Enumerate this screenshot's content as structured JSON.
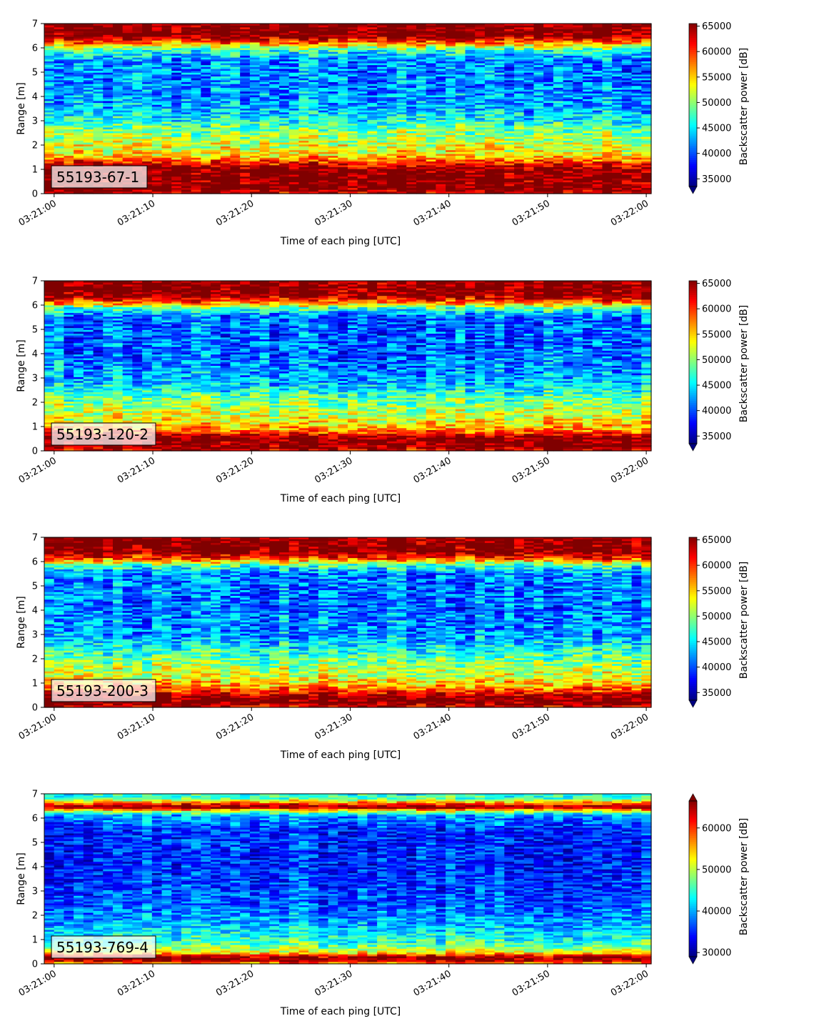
{
  "chart_data": [
    {
      "type": "heatmap",
      "panel_label": "55193-67-1",
      "xlabel": "Time of each ping [UTC]",
      "ylabel": "Range [m]",
      "x_tick_labels": [
        "03:21:00",
        "03:21:10",
        "03:21:20",
        "03:21:30",
        "03:21:40",
        "03:21:50",
        "03:22:00"
      ],
      "x_range_seconds": [
        -1,
        60.5
      ],
      "y_ticks": [
        0,
        1,
        2,
        3,
        4,
        5,
        6,
        7
      ],
      "ylim": [
        0,
        7
      ],
      "colorbar": {
        "label": "Backscatter power [dB]",
        "ticks": [
          35000,
          40000,
          45000,
          50000,
          55000,
          60000,
          65000
        ],
        "range": [
          33500,
          65500
        ],
        "extend": "min",
        "colormap": "jet"
      },
      "range_profile": [
        {
          "range": 0.0,
          "value": 62000
        },
        {
          "range": 0.2,
          "value": 66000
        },
        {
          "range": 1.0,
          "value": 66000
        },
        {
          "range": 1.3,
          "value": 60000
        },
        {
          "range": 1.6,
          "value": 54000
        },
        {
          "range": 2.0,
          "value": 52000
        },
        {
          "range": 2.5,
          "value": 50000
        },
        {
          "range": 3.0,
          "value": 46000
        },
        {
          "range": 3.5,
          "value": 43000
        },
        {
          "range": 4.5,
          "value": 41500
        },
        {
          "range": 5.5,
          "value": 42000
        },
        {
          "range": 5.9,
          "value": 47000
        },
        {
          "range": 6.2,
          "value": 58000
        },
        {
          "range": 6.5,
          "value": 66000
        },
        {
          "range": 7.0,
          "value": 66000
        }
      ]
    },
    {
      "type": "heatmap",
      "panel_label": "55193-120-2",
      "xlabel": "Time of each ping [UTC]",
      "ylabel": "Range [m]",
      "x_tick_labels": [
        "03:21:00",
        "03:21:10",
        "03:21:20",
        "03:21:30",
        "03:21:40",
        "03:21:50",
        "03:22:00"
      ],
      "x_range_seconds": [
        -1,
        60.5
      ],
      "y_ticks": [
        0,
        1,
        2,
        3,
        4,
        5,
        6,
        7
      ],
      "ylim": [
        0,
        7
      ],
      "colorbar": {
        "label": "Backscatter power [dB]",
        "ticks": [
          35000,
          40000,
          45000,
          50000,
          55000,
          60000,
          65000
        ],
        "range": [
          33500,
          65500
        ],
        "extend": "min",
        "colormap": "jet"
      },
      "range_profile": [
        {
          "range": 0.0,
          "value": 62000
        },
        {
          "range": 0.15,
          "value": 66000
        },
        {
          "range": 0.55,
          "value": 66000
        },
        {
          "range": 0.8,
          "value": 58000
        },
        {
          "range": 1.2,
          "value": 54000
        },
        {
          "range": 2.0,
          "value": 50000
        },
        {
          "range": 2.5,
          "value": 46000
        },
        {
          "range": 3.0,
          "value": 43000
        },
        {
          "range": 4.0,
          "value": 41000
        },
        {
          "range": 5.5,
          "value": 41000
        },
        {
          "range": 5.85,
          "value": 47000
        },
        {
          "range": 6.1,
          "value": 58000
        },
        {
          "range": 6.4,
          "value": 66000
        },
        {
          "range": 7.0,
          "value": 66000
        }
      ]
    },
    {
      "type": "heatmap",
      "panel_label": "55193-200-3",
      "xlabel": "Time of each ping [UTC]",
      "ylabel": "Range [m]",
      "x_tick_labels": [
        "03:21:00",
        "03:21:10",
        "03:21:20",
        "03:21:30",
        "03:21:40",
        "03:21:50",
        "03:22:00"
      ],
      "x_range_seconds": [
        -1,
        60.5
      ],
      "y_ticks": [
        0,
        1,
        2,
        3,
        4,
        5,
        6,
        7
      ],
      "ylim": [
        0,
        7
      ],
      "colorbar": {
        "label": "Backscatter power [dB]",
        "ticks": [
          35000,
          40000,
          45000,
          50000,
          55000,
          60000,
          65000
        ],
        "range": [
          33500,
          65500
        ],
        "extend": "min",
        "colormap": "jet"
      },
      "range_profile": [
        {
          "range": 0.0,
          "value": 62000
        },
        {
          "range": 0.15,
          "value": 66000
        },
        {
          "range": 0.45,
          "value": 66000
        },
        {
          "range": 0.75,
          "value": 58000
        },
        {
          "range": 1.2,
          "value": 53000
        },
        {
          "range": 2.0,
          "value": 49000
        },
        {
          "range": 2.5,
          "value": 45000
        },
        {
          "range": 3.0,
          "value": 42500
        },
        {
          "range": 4.0,
          "value": 41000
        },
        {
          "range": 5.5,
          "value": 41500
        },
        {
          "range": 5.85,
          "value": 48000
        },
        {
          "range": 6.1,
          "value": 59000
        },
        {
          "range": 6.4,
          "value": 66000
        },
        {
          "range": 7.0,
          "value": 66000
        }
      ]
    },
    {
      "type": "heatmap",
      "panel_label": "55193-769-4",
      "xlabel": "Time of each ping [UTC]",
      "ylabel": "Range [m]",
      "x_tick_labels": [
        "03:21:00",
        "03:21:10",
        "03:21:20",
        "03:21:30",
        "03:21:40",
        "03:21:50",
        "03:22:00"
      ],
      "x_range_seconds": [
        -1,
        60.5
      ],
      "y_ticks": [
        0,
        1,
        2,
        3,
        4,
        5,
        6,
        7
      ],
      "ylim": [
        0,
        7
      ],
      "colorbar": {
        "label": "Backscatter power [dB]",
        "ticks": [
          30000,
          40000,
          50000,
          60000
        ],
        "range": [
          29000,
          66500
        ],
        "extend": "both",
        "colormap": "jet"
      },
      "range_profile": [
        {
          "range": 0.0,
          "value": 55000
        },
        {
          "range": 0.15,
          "value": 67000
        },
        {
          "range": 0.3,
          "value": 65000
        },
        {
          "range": 0.45,
          "value": 53000
        },
        {
          "range": 0.8,
          "value": 46000
        },
        {
          "range": 1.5,
          "value": 41000
        },
        {
          "range": 2.5,
          "value": 37000
        },
        {
          "range": 4.0,
          "value": 35000
        },
        {
          "range": 5.5,
          "value": 35500
        },
        {
          "range": 6.1,
          "value": 40000
        },
        {
          "range": 6.3,
          "value": 52000
        },
        {
          "range": 6.45,
          "value": 67000
        },
        {
          "range": 6.55,
          "value": 62000
        },
        {
          "range": 6.8,
          "value": 46000
        },
        {
          "range": 7.0,
          "value": 44000
        }
      ]
    }
  ]
}
